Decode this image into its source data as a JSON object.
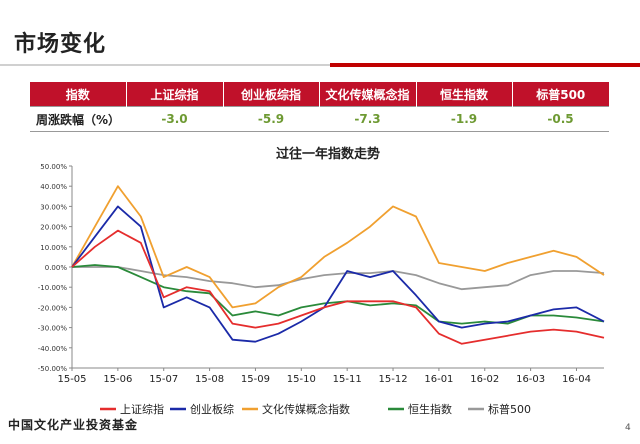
{
  "slide": {
    "title": "市场变化",
    "footer_logo": "中国文化产业投资基金",
    "page_number": "4"
  },
  "returns_table": {
    "headers": [
      "指数",
      "上证综指",
      "创业板综指",
      "文化传媒概念指",
      "恒生指数",
      "标普500"
    ],
    "row_label": "周涨跌幅（%）",
    "values": [
      "-3.0",
      "-5.9",
      "-7.3",
      "-1.9",
      "-0.5"
    ]
  },
  "colors": {
    "accent_red": "#c0112a",
    "value_green": "#6e9a33"
  },
  "chart_data": {
    "type": "line",
    "title": "过往一年指数走势",
    "xlabel": "",
    "ylabel": "",
    "ylim": [
      -0.5,
      0.5
    ],
    "yticks": [
      "50.00%",
      "40.00%",
      "30.00%",
      "20.00%",
      "10.00%",
      "0.00%",
      "-10.00%",
      "-20.00%",
      "-30.00%",
      "-40.00%",
      "-50.00%"
    ],
    "xticks": [
      "15-05",
      "15-06",
      "15-07",
      "15-08",
      "15-09",
      "15-10",
      "15-11",
      "15-12",
      "16-01",
      "16-02",
      "16-03",
      "16-04"
    ],
    "grid": false,
    "legend_position": "bottom",
    "x": [
      0,
      0.5,
      1,
      1.5,
      2,
      2.5,
      3,
      3.5,
      4,
      4.5,
      5,
      5.5,
      6,
      6.5,
      7,
      7.5,
      8,
      8.5,
      9,
      9.5,
      10,
      10.5,
      11,
      11.6
    ],
    "series": [
      {
        "name": "上证综指",
        "color": "#e52d2d",
        "values": [
          0,
          0.1,
          0.18,
          0.12,
          -0.15,
          -0.1,
          -0.12,
          -0.28,
          -0.3,
          -0.28,
          -0.24,
          -0.2,
          -0.17,
          -0.17,
          -0.17,
          -0.2,
          -0.33,
          -0.38,
          -0.36,
          -0.34,
          -0.32,
          -0.31,
          -0.32,
          -0.35
        ]
      },
      {
        "name": "创业板综",
        "color": "#1b2aa8",
        "values": [
          0,
          0.15,
          0.3,
          0.2,
          -0.2,
          -0.15,
          -0.2,
          -0.36,
          -0.37,
          -0.33,
          -0.27,
          -0.2,
          -0.02,
          -0.05,
          -0.02,
          -0.14,
          -0.27,
          -0.3,
          -0.28,
          -0.27,
          -0.24,
          -0.21,
          -0.2,
          -0.27
        ]
      },
      {
        "name": "文化传媒概念指数",
        "color": "#f0a030",
        "values": [
          0,
          0.2,
          0.4,
          0.25,
          -0.05,
          0,
          -0.05,
          -0.2,
          -0.18,
          -0.1,
          -0.05,
          0.05,
          0.12,
          0.2,
          0.3,
          0.25,
          0.02,
          0,
          -0.02,
          0.02,
          0.05,
          0.08,
          0.05,
          -0.04
        ]
      },
      {
        "name": "恒生指数",
        "color": "#2a8a3a",
        "values": [
          0,
          0.01,
          0,
          -0.05,
          -0.1,
          -0.12,
          -0.13,
          -0.24,
          -0.22,
          -0.24,
          -0.2,
          -0.18,
          -0.17,
          -0.19,
          -0.18,
          -0.19,
          -0.27,
          -0.28,
          -0.27,
          -0.28,
          -0.24,
          -0.24,
          -0.25,
          -0.27
        ]
      },
      {
        "name": "标普500",
        "color": "#999999",
        "values": [
          0,
          0,
          0,
          -0.02,
          -0.04,
          -0.05,
          -0.07,
          -0.08,
          -0.1,
          -0.09,
          -0.06,
          -0.04,
          -0.03,
          -0.03,
          -0.02,
          -0.04,
          -0.08,
          -0.11,
          -0.1,
          -0.09,
          -0.04,
          -0.02,
          -0.02,
          -0.03
        ]
      }
    ]
  }
}
